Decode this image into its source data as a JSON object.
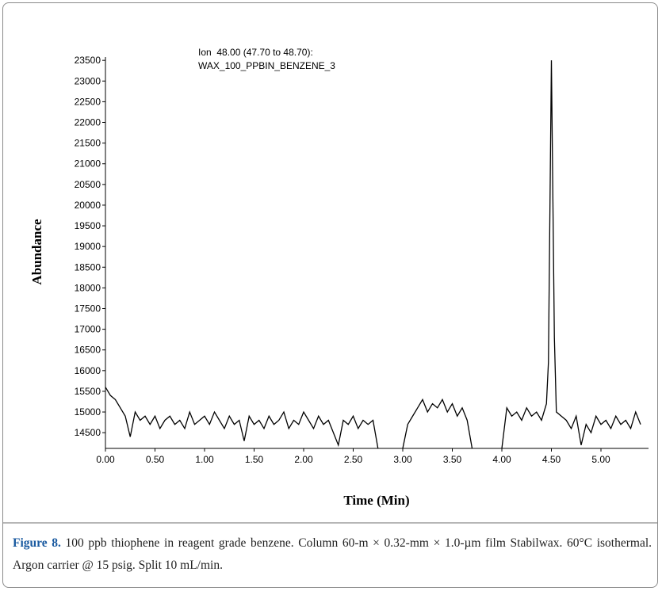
{
  "chart_data": {
    "type": "line",
    "annotation": [
      "Ion  48.00 (47.70 to 48.70):",
      "WAX_100_PPBIN_BENZENE_3"
    ],
    "xlabel": "Time (Min)",
    "ylabel": "Abundance",
    "color": "#000000",
    "x": [
      0.0,
      0.05,
      0.1,
      0.15,
      0.2,
      0.25,
      0.3,
      0.35,
      0.4,
      0.45,
      0.5,
      0.55,
      0.6,
      0.65,
      0.7,
      0.75,
      0.8,
      0.85,
      0.9,
      0.95,
      1.0,
      1.05,
      1.1,
      1.15,
      1.2,
      1.25,
      1.3,
      1.35,
      1.4,
      1.45,
      1.5,
      1.55,
      1.6,
      1.65,
      1.7,
      1.75,
      1.8,
      1.85,
      1.9,
      1.95,
      2.0,
      2.05,
      2.1,
      2.15,
      2.2,
      2.25,
      2.3,
      2.35,
      2.4,
      2.45,
      2.5,
      2.55,
      2.6,
      2.65,
      2.7,
      2.75,
      2.8,
      2.85,
      2.9,
      2.95,
      3.0,
      3.05,
      3.1,
      3.15,
      3.2,
      3.25,
      3.3,
      3.35,
      3.4,
      3.45,
      3.5,
      3.55,
      3.6,
      3.65,
      3.7,
      3.75,
      3.8,
      3.85,
      3.9,
      3.95,
      4.0,
      4.05,
      4.1,
      4.15,
      4.2,
      4.25,
      4.3,
      4.35,
      4.4,
      4.45,
      4.47,
      4.5,
      4.53,
      4.55,
      4.6,
      4.65,
      4.7,
      4.75,
      4.8,
      4.85,
      4.9,
      4.95,
      5.0,
      5.05,
      5.1,
      5.15,
      5.2,
      5.25,
      5.3,
      5.35,
      5.4
    ],
    "values": [
      15600,
      15400,
      15300,
      15100,
      14900,
      14400,
      15000,
      14800,
      14900,
      14700,
      14900,
      14600,
      14800,
      14900,
      14700,
      14800,
      14600,
      15000,
      14700,
      14800,
      14900,
      14700,
      15000,
      14800,
      14600,
      14900,
      14700,
      14800,
      14300,
      14900,
      14700,
      14800,
      14600,
      14900,
      14700,
      14800,
      15000,
      14600,
      14800,
      14700,
      15000,
      14800,
      14600,
      14900,
      14700,
      14800,
      14500,
      14200,
      14800,
      14700,
      14900,
      14600,
      14800,
      14700,
      14800,
      14120,
      null,
      null,
      null,
      null,
      14120,
      14700,
      14900,
      15100,
      15300,
      15000,
      15200,
      15100,
      15300,
      15000,
      15200,
      14900,
      15100,
      14800,
      14120,
      null,
      null,
      null,
      null,
      null,
      14120,
      15100,
      14900,
      15000,
      14800,
      15100,
      14900,
      15000,
      14800,
      15200,
      16200,
      23500,
      16800,
      15000,
      14900,
      14800,
      14600,
      14900,
      14200,
      14700,
      14500,
      14900,
      14700,
      14800,
      14600,
      14900,
      14700,
      14800,
      14600,
      15000,
      14700
    ],
    "xlim": [
      0,
      5.48
    ],
    "ylim": [
      14120,
      23580
    ],
    "xticks": [
      {
        "value": 0,
        "label": "0.00"
      },
      {
        "value": 0.5,
        "label": "0.50"
      },
      {
        "value": 1,
        "label": "1.00"
      },
      {
        "value": 1.5,
        "label": "1.50"
      },
      {
        "value": 2,
        "label": "2.00"
      },
      {
        "value": 2.5,
        "label": "2.50"
      },
      {
        "value": 3,
        "label": "3.00"
      },
      {
        "value": 3.5,
        "label": "3.50"
      },
      {
        "value": 4,
        "label": "4.00"
      },
      {
        "value": 4.5,
        "label": "4.50"
      },
      {
        "value": 5,
        "label": "5.00"
      }
    ],
    "yticks": [
      14500,
      15000,
      15500,
      16000,
      16500,
      17000,
      17500,
      18000,
      18500,
      19000,
      19500,
      20000,
      20500,
      21000,
      21500,
      22000,
      22500,
      23000,
      23500
    ],
    "grid": false
  },
  "figure_caption": {
    "label": "Figure 8.",
    "text": " 100 ppb thiophene in reagent grade benzene. Column 60-m × 0.32-mm × 1.0-µm film Stabilwax. 60°C isothermal. Argon carrier @ 15 psig. Split 10 mL/min."
  }
}
